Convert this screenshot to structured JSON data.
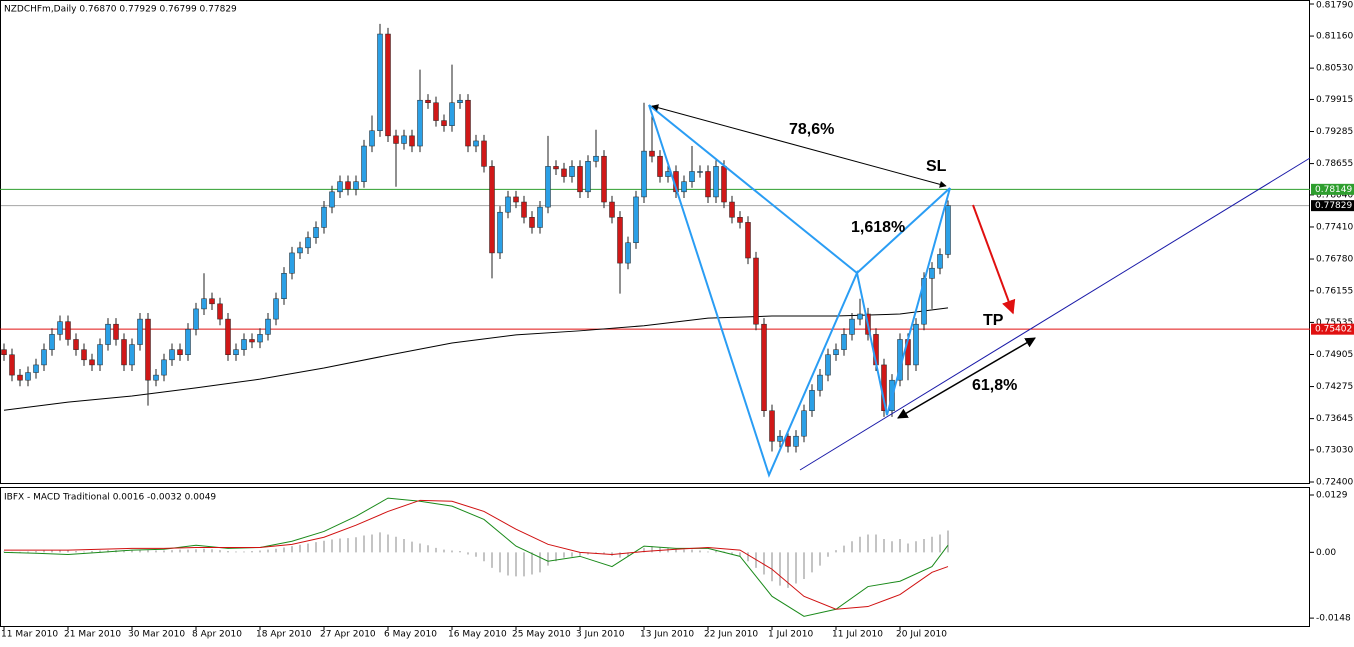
{
  "chart_data": {
    "type": "candlestick",
    "title": "NZDCHFm,Daily  0.76870 0.77929 0.76799 0.77829",
    "colors": {
      "up": "#2ba0e6",
      "down": "#d01818",
      "wick": "#222222"
    },
    "categories": [
      "11 Mar 2010",
      null,
      null,
      null,
      null,
      null,
      null,
      null,
      "21 Mar 2010",
      null,
      null,
      null,
      null,
      null,
      null,
      null,
      "30 Mar 2010",
      null,
      null,
      null,
      null,
      null,
      null,
      null,
      "8 Apr 2010",
      null,
      null,
      null,
      null,
      null,
      null,
      null,
      "18 Apr 2010",
      null,
      null,
      null,
      null,
      null,
      null,
      null,
      "27 Apr 2010",
      null,
      null,
      null,
      null,
      null,
      null,
      null,
      "6 May 2010",
      null,
      null,
      null,
      null,
      null,
      null,
      null,
      "16 May 2010",
      null,
      null,
      null,
      null,
      null,
      null,
      null,
      "25 May 2010",
      null,
      null,
      null,
      null,
      null,
      null,
      null,
      "3 Jun 2010",
      null,
      null,
      null,
      null,
      null,
      null,
      null,
      "13 Jun 2010",
      null,
      null,
      null,
      null,
      null,
      null,
      null,
      "22 Jun 2010",
      null,
      null,
      null,
      null,
      null,
      null,
      null,
      "1 Jul 2010",
      null,
      null,
      null,
      null,
      null,
      null,
      null,
      "11 Jul 2010",
      null,
      null,
      null,
      null,
      null,
      null,
      null,
      "20 Jul 2010",
      null,
      null,
      null,
      null,
      null,
      null
    ],
    "candles": [
      [
        0.75,
        0.7512,
        0.7478,
        0.749
      ],
      [
        0.749,
        0.7502,
        0.7438,
        0.745
      ],
      [
        0.745,
        0.7462,
        0.7428,
        0.744
      ],
      [
        0.744,
        0.7467,
        0.7428,
        0.7455
      ],
      [
        0.7455,
        0.7482,
        0.7443,
        0.747
      ],
      [
        0.747,
        0.7512,
        0.7458,
        0.75
      ],
      [
        0.75,
        0.7542,
        0.7488,
        0.753
      ],
      [
        0.753,
        0.7567,
        0.7518,
        0.7555
      ],
      [
        0.7555,
        0.7567,
        0.7508,
        0.752
      ],
      [
        0.752,
        0.7532,
        0.7488,
        0.75
      ],
      [
        0.75,
        0.7512,
        0.7468,
        0.748
      ],
      [
        0.748,
        0.7492,
        0.7458,
        0.747
      ],
      [
        0.747,
        0.7522,
        0.7458,
        0.751
      ],
      [
        0.751,
        0.7562,
        0.7498,
        0.755
      ],
      [
        0.755,
        0.7562,
        0.7508,
        0.752
      ],
      [
        0.752,
        0.7532,
        0.7458,
        0.747
      ],
      [
        0.747,
        0.7522,
        0.7458,
        0.751
      ],
      [
        0.751,
        0.7572,
        0.7498,
        0.756
      ],
      [
        0.756,
        0.7572,
        0.739,
        0.744
      ],
      [
        0.744,
        0.7462,
        0.7428,
        0.745
      ],
      [
        0.745,
        0.7492,
        0.7438,
        0.748
      ],
      [
        0.748,
        0.7512,
        0.7468,
        0.75
      ],
      [
        0.75,
        0.7512,
        0.7478,
        0.749
      ],
      [
        0.749,
        0.7552,
        0.7478,
        0.754
      ],
      [
        0.754,
        0.7592,
        0.7528,
        0.758
      ],
      [
        0.758,
        0.765,
        0.7568,
        0.76
      ],
      [
        0.76,
        0.7612,
        0.7578,
        0.759
      ],
      [
        0.759,
        0.7602,
        0.7548,
        0.756
      ],
      [
        0.756,
        0.7572,
        0.7478,
        0.749
      ],
      [
        0.749,
        0.7512,
        0.7478,
        0.75
      ],
      [
        0.75,
        0.7532,
        0.7488,
        0.752
      ],
      [
        0.752,
        0.7532,
        0.7503,
        0.7515
      ],
      [
        0.7515,
        0.7542,
        0.7503,
        0.753
      ],
      [
        0.753,
        0.7572,
        0.7518,
        0.756
      ],
      [
        0.756,
        0.7612,
        0.7548,
        0.76
      ],
      [
        0.76,
        0.7662,
        0.7588,
        0.765
      ],
      [
        0.765,
        0.7702,
        0.7638,
        0.769
      ],
      [
        0.769,
        0.7712,
        0.7678,
        0.77
      ],
      [
        0.77,
        0.7732,
        0.7688,
        0.772
      ],
      [
        0.772,
        0.7752,
        0.7708,
        0.774
      ],
      [
        0.774,
        0.7792,
        0.7728,
        0.778
      ],
      [
        0.778,
        0.7822,
        0.7768,
        0.781
      ],
      [
        0.781,
        0.7842,
        0.7798,
        0.783
      ],
      [
        0.783,
        0.7842,
        0.7803,
        0.7815
      ],
      [
        0.7815,
        0.7842,
        0.7803,
        0.783
      ],
      [
        0.783,
        0.7912,
        0.7818,
        0.79
      ],
      [
        0.79,
        0.796,
        0.7888,
        0.793
      ],
      [
        0.793,
        0.814,
        0.7918,
        0.812
      ],
      [
        0.812,
        0.8132,
        0.7908,
        0.792
      ],
      [
        0.792,
        0.7932,
        0.782,
        0.7905
      ],
      [
        0.7905,
        0.7932,
        0.7893,
        0.792
      ],
      [
        0.792,
        0.7932,
        0.7888,
        0.79
      ],
      [
        0.79,
        0.805,
        0.7888,
        0.799
      ],
      [
        0.799,
        0.8002,
        0.7973,
        0.7985
      ],
      [
        0.7985,
        0.7997,
        0.7938,
        0.795
      ],
      [
        0.795,
        0.7962,
        0.7928,
        0.794
      ],
      [
        0.794,
        0.806,
        0.7928,
        0.7985
      ],
      [
        0.7985,
        0.8002,
        0.7973,
        0.799
      ],
      [
        0.799,
        0.8002,
        0.7888,
        0.79
      ],
      [
        0.79,
        0.7922,
        0.7888,
        0.791
      ],
      [
        0.791,
        0.7922,
        0.7848,
        0.786
      ],
      [
        0.786,
        0.7872,
        0.764,
        0.769
      ],
      [
        0.769,
        0.7782,
        0.7678,
        0.777
      ],
      [
        0.777,
        0.7812,
        0.7758,
        0.78
      ],
      [
        0.78,
        0.7812,
        0.7778,
        0.779
      ],
      [
        0.779,
        0.7802,
        0.7748,
        0.776
      ],
      [
        0.776,
        0.7772,
        0.7728,
        0.774
      ],
      [
        0.774,
        0.7792,
        0.7728,
        0.778
      ],
      [
        0.778,
        0.792,
        0.7768,
        0.786
      ],
      [
        0.786,
        0.7872,
        0.7843,
        0.7855
      ],
      [
        0.7855,
        0.7867,
        0.7828,
        0.784
      ],
      [
        0.784,
        0.7872,
        0.7828,
        0.786
      ],
      [
        0.786,
        0.7872,
        0.7798,
        0.781
      ],
      [
        0.781,
        0.7882,
        0.7798,
        0.787
      ],
      [
        0.787,
        0.7932,
        0.7858,
        0.788
      ],
      [
        0.788,
        0.7892,
        0.7778,
        0.779
      ],
      [
        0.779,
        0.7802,
        0.7748,
        0.776
      ],
      [
        0.776,
        0.7772,
        0.761,
        0.767
      ],
      [
        0.767,
        0.7722,
        0.7658,
        0.771
      ],
      [
        0.771,
        0.7812,
        0.7698,
        0.78
      ],
      [
        0.78,
        0.7985,
        0.7788,
        0.789
      ],
      [
        0.789,
        0.796,
        0.7868,
        0.788
      ],
      [
        0.788,
        0.7892,
        0.7828,
        0.784
      ],
      [
        0.784,
        0.7862,
        0.7828,
        0.785
      ],
      [
        0.785,
        0.7862,
        0.7798,
        0.781
      ],
      [
        0.781,
        0.7842,
        0.7798,
        0.783
      ],
      [
        0.783,
        0.79,
        0.7818,
        0.785
      ],
      [
        0.785,
        0.7862,
        0.7838,
        0.785
      ],
      [
        0.785,
        0.7862,
        0.7788,
        0.78
      ],
      [
        0.78,
        0.7872,
        0.7788,
        0.786
      ],
      [
        0.786,
        0.7872,
        0.7778,
        0.779
      ],
      [
        0.779,
        0.7802,
        0.7748,
        0.776
      ],
      [
        0.776,
        0.7772,
        0.7738,
        0.775
      ],
      [
        0.775,
        0.7762,
        0.7668,
        0.768
      ],
      [
        0.768,
        0.7692,
        0.7538,
        0.755
      ],
      [
        0.755,
        0.7562,
        0.7368,
        0.738
      ],
      [
        0.738,
        0.7392,
        0.73,
        0.732
      ],
      [
        0.732,
        0.7342,
        0.7308,
        0.733
      ],
      [
        0.733,
        0.7342,
        0.7298,
        0.731
      ],
      [
        0.731,
        0.7342,
        0.7298,
        0.733
      ],
      [
        0.733,
        0.7392,
        0.7318,
        0.738
      ],
      [
        0.738,
        0.7432,
        0.7368,
        0.742
      ],
      [
        0.742,
        0.7462,
        0.7408,
        0.745
      ],
      [
        0.745,
        0.7502,
        0.7438,
        0.749
      ],
      [
        0.749,
        0.7512,
        0.7478,
        0.75
      ],
      [
        0.75,
        0.7542,
        0.7488,
        0.753
      ],
      [
        0.753,
        0.7572,
        0.7518,
        0.756
      ],
      [
        0.756,
        0.76,
        0.7548,
        0.757
      ],
      [
        0.757,
        0.7582,
        0.7518,
        0.753
      ],
      [
        0.753,
        0.7542,
        0.7458,
        0.747
      ],
      [
        0.747,
        0.7482,
        0.7368,
        0.738
      ],
      [
        0.738,
        0.7452,
        0.7368,
        0.744
      ],
      [
        0.744,
        0.7532,
        0.7428,
        0.752
      ],
      [
        0.752,
        0.7532,
        0.744,
        0.747
      ],
      [
        0.747,
        0.7562,
        0.7458,
        0.755
      ],
      [
        0.755,
        0.7652,
        0.7538,
        0.764
      ],
      [
        0.764,
        0.7672,
        0.758,
        0.766
      ],
      [
        0.766,
        0.7699,
        0.7648,
        0.7687
      ],
      [
        0.7687,
        0.77929,
        0.76799,
        0.77829
      ]
    ],
    "ylim": [
      0.724,
      0.8179
    ],
    "yticks": [
      {
        "value": 0.8179,
        "label": "0.81790"
      },
      {
        "value": 0.8116,
        "label": "0.81160"
      },
      {
        "value": 0.8053,
        "label": "0.80530"
      },
      0.79915,
      0.79285,
      0.78655,
      {
        "value": 0.7804,
        "label": "0.78040"
      },
      {
        "value": 0.7741,
        "label": "0.77410"
      },
      {
        "value": 0.7678,
        "label": "0.76780"
      },
      0.76155,
      0.75535,
      0.74905,
      0.74275,
      0.73645,
      {
        "value": 0.7303,
        "label": "0.73030"
      },
      {
        "value": 0.724,
        "label": "0.72400"
      }
    ],
    "levels": [
      {
        "value": 0.78149,
        "color": "#2e9e2e"
      },
      {
        "value": 0.77829,
        "color": "#000000"
      },
      {
        "value": 0.75402,
        "color": "#e01010"
      }
    ],
    "ma": {
      "color": "#000000",
      "x": [
        0,
        8,
        16,
        24,
        32,
        40,
        48,
        56,
        64,
        72,
        80,
        88,
        96,
        104,
        112,
        118
      ],
      "values": [
        0.7381,
        0.7397,
        0.7409,
        0.7425,
        0.7442,
        0.7464,
        0.7489,
        0.7513,
        0.7529,
        0.7537,
        0.7547,
        0.7562,
        0.7566,
        0.7566,
        0.757,
        0.7582
      ]
    },
    "annotations": [
      "78,6%",
      "SL",
      "1,618%",
      "TP",
      "61,8%"
    ],
    "macd": {
      "title": "IBFX - MACD Traditional 0.0016 -0.0032 0.0049",
      "ylim": [
        -0.0168,
        0.0147
      ],
      "yticks": [
        0.0129,
        {
          "value": 0,
          "label": "0.00"
        },
        -0.0148
      ],
      "histogram": [
        0.0002,
        0.0001,
        0.0001,
        0.0002,
        0.0003,
        0.0004,
        0.0005,
        0.0005,
        0.0004,
        0.0003,
        0.0002,
        0.0003,
        0.0004,
        0.0005,
        0.0005,
        0.0004,
        0.0005,
        0.0006,
        0.0005,
        0.0004,
        0.0004,
        0.0005,
        0.0006,
        0.0006,
        0.0007,
        0.0008,
        0.0007,
        0.0005,
        0.0003,
        0.0002,
        0.0002,
        0.0003,
        0.0004,
        0.0006,
        0.0008,
        0.0011,
        0.0014,
        0.0017,
        0.002,
        0.0023,
        0.0026,
        0.0029,
        0.0031,
        0.0032,
        0.0034,
        0.0038,
        0.004,
        0.0045,
        0.004,
        0.0035,
        0.003,
        0.0024,
        0.002,
        0.0016,
        0.001,
        0.0006,
        0.0004,
        0.0003,
        -0.0005,
        -0.001,
        -0.002,
        -0.0035,
        -0.0045,
        -0.0052,
        -0.0054,
        -0.0054,
        -0.005,
        -0.0045,
        -0.003,
        -0.002,
        -0.0012,
        -0.001,
        -0.0008,
        -0.0005,
        -0.0002,
        -0.0005,
        -0.0008,
        -0.0012,
        -0.0008,
        0.0002,
        0.001,
        0.0014,
        0.0012,
        0.001,
        0.0008,
        0.0006,
        0.0006,
        0.0004,
        0.0002,
        0.0003,
        0.0002,
        -0.0004,
        -0.001,
        -0.002,
        -0.0035,
        -0.005,
        -0.0065,
        -0.0075,
        -0.008,
        -0.007,
        -0.006,
        -0.0045,
        -0.003,
        -0.001,
        0.0005,
        0.0015,
        0.0025,
        0.0035,
        0.004,
        0.004,
        0.003,
        0.0025,
        0.003,
        0.002,
        0.0025,
        0.003,
        0.0035,
        0.004,
        0.0049
      ],
      "main": {
        "color": "#1a8a1a",
        "x": [
          0,
          4,
          8,
          12,
          16,
          20,
          24,
          28,
          32,
          36,
          40,
          44,
          48,
          52,
          56,
          60,
          64,
          68,
          72,
          76,
          80,
          84,
          88,
          92,
          96,
          100,
          104,
          108,
          112,
          116,
          118
        ],
        "values": [
          0,
          -0.0002,
          -0.0005,
          0,
          0.0005,
          0.0007,
          0.0016,
          0.0009,
          0.0011,
          0.0025,
          0.0047,
          0.0081,
          0.0122,
          0.0115,
          0.0104,
          0.0074,
          0.0014,
          -0.002,
          -0.0009,
          -0.0032,
          0.0014,
          0.0009,
          0.0009,
          -0.0009,
          -0.0099,
          -0.0144,
          -0.0128,
          -0.0077,
          -0.0065,
          -0.0032,
          0.0016
        ]
      },
      "signal": {
        "color": "#d01010",
        "x": [
          0,
          4,
          8,
          12,
          16,
          20,
          24,
          28,
          32,
          36,
          40,
          44,
          48,
          52,
          56,
          60,
          64,
          68,
          72,
          76,
          80,
          84,
          88,
          92,
          96,
          100,
          104,
          108,
          112,
          116,
          118
        ],
        "values": [
          0.0005,
          0.0005,
          0.0005,
          0.0007,
          0.0009,
          0.0009,
          0.0011,
          0.0011,
          0.0011,
          0.0018,
          0.0034,
          0.0061,
          0.0092,
          0.0117,
          0.0115,
          0.0092,
          0.0052,
          0.0018,
          0,
          -0.0005,
          0.0002,
          0.0007,
          0.0011,
          0.0005,
          -0.0038,
          -0.0099,
          -0.0128,
          -0.0122,
          -0.0095,
          -0.0045,
          -0.0032
        ]
      }
    }
  }
}
